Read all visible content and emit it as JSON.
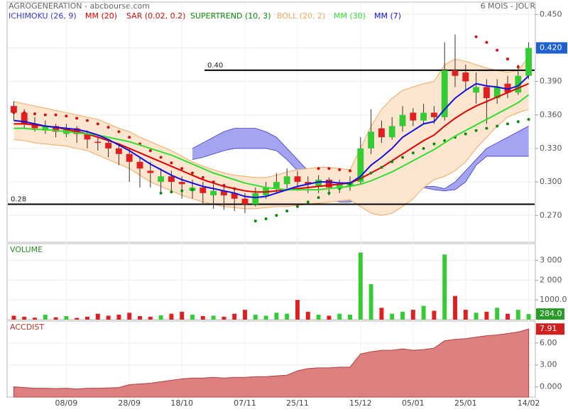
{
  "header": {
    "title": "AGROGENERATION - abcbourse.com",
    "period": "6 MOIS - JOUR"
  },
  "chart_data": [
    {
      "type": "candlestick",
      "categories": [
        null,
        null,
        null,
        null,
        null,
        "08/09",
        null,
        null,
        null,
        null,
        null,
        "28/09",
        null,
        null,
        null,
        null,
        "18/10",
        null,
        null,
        null,
        null,
        null,
        "07/11",
        null,
        null,
        null,
        null,
        "25/11",
        null,
        null,
        null,
        null,
        null,
        "15/12",
        null,
        null,
        null,
        null,
        "05/01",
        null,
        null,
        null,
        null,
        "25/01",
        null,
        null,
        null,
        null,
        null,
        "14/02"
      ],
      "ohlc": [
        [
          0.368,
          0.372,
          0.355,
          0.362
        ],
        [
          0.362,
          0.365,
          0.348,
          0.352
        ],
        [
          0.352,
          0.358,
          0.345,
          0.348
        ],
        [
          0.346,
          0.355,
          0.343,
          0.35
        ],
        [
          0.35,
          0.352,
          0.34,
          0.345
        ],
        [
          0.343,
          0.352,
          0.34,
          0.348
        ],
        [
          0.348,
          0.35,
          0.335,
          0.343
        ],
        [
          0.343,
          0.346,
          0.33,
          0.338
        ],
        [
          0.336,
          0.342,
          0.328,
          0.335
        ],
        [
          0.335,
          0.338,
          0.322,
          0.33
        ],
        [
          0.33,
          0.333,
          0.315,
          0.325
        ],
        [
          0.325,
          0.33,
          0.3,
          0.318
        ],
        [
          0.318,
          0.322,
          0.295,
          0.312
        ],
        [
          0.31,
          0.318,
          0.295,
          0.308
        ],
        [
          0.3,
          0.312,
          0.29,
          0.305
        ],
        [
          0.305,
          0.31,
          0.29,
          0.3
        ],
        [
          0.3,
          0.305,
          0.285,
          0.298
        ],
        [
          0.292,
          0.302,
          0.285,
          0.295
        ],
        [
          0.295,
          0.3,
          0.28,
          0.29
        ],
        [
          0.288,
          0.298,
          0.276,
          0.292
        ],
        [
          0.292,
          0.296,
          0.275,
          0.288
        ],
        [
          0.29,
          0.294,
          0.274,
          0.285
        ],
        [
          0.285,
          0.29,
          0.272,
          0.28
        ],
        [
          0.28,
          0.295,
          0.278,
          0.29
        ],
        [
          0.288,
          0.3,
          0.285,
          0.295
        ],
        [
          0.294,
          0.308,
          0.29,
          0.3
        ],
        [
          0.298,
          0.312,
          0.294,
          0.305
        ],
        [
          0.305,
          0.31,
          0.292,
          0.3
        ],
        [
          0.3,
          0.305,
          0.29,
          0.298
        ],
        [
          0.296,
          0.306,
          0.29,
          0.302
        ],
        [
          0.302,
          0.304,
          0.288,
          0.295
        ],
        [
          0.294,
          0.302,
          0.29,
          0.298
        ],
        [
          0.296,
          0.305,
          0.292,
          0.3
        ],
        [
          0.3,
          0.34,
          0.298,
          0.33
        ],
        [
          0.33,
          0.365,
          0.325,
          0.345
        ],
        [
          0.348,
          0.355,
          0.335,
          0.34
        ],
        [
          0.34,
          0.358,
          0.338,
          0.35
        ],
        [
          0.35,
          0.368,
          0.345,
          0.36
        ],
        [
          0.362,
          0.366,
          0.35,
          0.355
        ],
        [
          0.355,
          0.37,
          0.352,
          0.362
        ],
        [
          0.362,
          0.368,
          0.352,
          0.358
        ],
        [
          0.358,
          0.425,
          0.355,
          0.4
        ],
        [
          0.4,
          0.432,
          0.385,
          0.395
        ],
        [
          0.398,
          0.405,
          0.382,
          0.39
        ],
        [
          0.38,
          0.398,
          0.37,
          0.385
        ],
        [
          0.385,
          0.392,
          0.352,
          0.375
        ],
        [
          0.375,
          0.392,
          0.37,
          0.385
        ],
        [
          0.388,
          0.395,
          0.375,
          0.38
        ],
        [
          0.38,
          0.405,
          0.378,
          0.395
        ],
        [
          0.395,
          0.425,
          0.392,
          0.42
        ]
      ],
      "up_color": "#33cc33",
      "down_color": "#e02020",
      "ylim": [
        0.246,
        0.461
      ],
      "yticks": [
        {
          "value": 0.27,
          "label": "0.270"
        },
        {
          "value": 0.3,
          "label": "0.300"
        },
        {
          "value": 0.33,
          "label": "0.330"
        },
        {
          "value": 0.36,
          "label": "0.360"
        },
        {
          "value": 0.39,
          "label": "0.390"
        },
        {
          "value": 0.42,
          "label": "0.420"
        },
        {
          "value": 0.45,
          "label": "0.450"
        }
      ],
      "last_label": "0.420",
      "hlines": [
        {
          "value": 0.4,
          "label": "0.40"
        },
        {
          "value": 0.28,
          "label": "0.28"
        }
      ],
      "series": [
        {
          "name": "ICHIMOKU (26, 9)",
          "style": "cloud",
          "color": "#3a3ac8",
          "fill": "#a4a4f2",
          "span_a": [
            null,
            null,
            null,
            null,
            null,
            null,
            null,
            null,
            null,
            null,
            null,
            null,
            null,
            null,
            null,
            null,
            null,
            0.33,
            0.335,
            0.34,
            0.345,
            0.348,
            0.348,
            0.348,
            0.345,
            0.34,
            0.33,
            0.32,
            0.31,
            0.305,
            0.3,
            0.298,
            0.295,
            0.292,
            0.29,
            0.288,
            0.29,
            0.292,
            0.295,
            0.296,
            0.296,
            0.294,
            0.3,
            0.31,
            0.32,
            0.33,
            0.335,
            0.34,
            0.345,
            0.35
          ],
          "span_b": [
            null,
            null,
            null,
            null,
            null,
            null,
            null,
            null,
            null,
            null,
            null,
            null,
            null,
            null,
            null,
            null,
            null,
            0.32,
            0.322,
            0.325,
            0.328,
            0.33,
            0.33,
            0.33,
            0.33,
            0.328,
            0.32,
            0.31,
            0.3,
            0.29,
            0.285,
            0.282,
            0.282,
            0.285,
            0.288,
            0.292,
            0.295,
            0.296,
            0.296,
            0.295,
            0.293,
            0.292,
            0.293,
            0.3,
            0.315,
            0.323,
            0.323,
            0.323,
            0.323,
            0.323
          ]
        },
        {
          "name": "MM (20)",
          "style": "line",
          "color": "#e00000",
          "values": [
            0.352,
            0.352,
            0.351,
            0.35,
            0.349,
            0.347,
            0.345,
            0.343,
            0.34,
            0.337,
            0.334,
            0.33,
            0.326,
            0.322,
            0.318,
            0.314,
            0.31,
            0.306,
            0.302,
            0.299,
            0.296,
            0.294,
            0.292,
            0.291,
            0.291,
            0.292,
            0.293,
            0.294,
            0.295,
            0.296,
            0.297,
            0.298,
            0.299,
            0.303,
            0.308,
            0.313,
            0.319,
            0.325,
            0.331,
            0.337,
            0.342,
            0.35,
            0.357,
            0.363,
            0.368,
            0.372,
            0.376,
            0.38,
            0.384,
            0.388
          ]
        },
        {
          "name": "SAR (0.02, 0.2)",
          "style": "dots",
          "color": "#d01010",
          "values": [
            0.362,
            0.362,
            0.361,
            0.36,
            0.36,
            0.359,
            0.357,
            0.355,
            0.352,
            0.349,
            0.345,
            0.34,
            0.334,
            0.328,
            0.322,
            0.317,
            0.312,
            0.308,
            0.304,
            0.3,
            0.297,
            0.294,
            null,
            null,
            null,
            null,
            null,
            null,
            null,
            0.312,
            0.312,
            0.311,
            0.31,
            null,
            null,
            null,
            null,
            null,
            null,
            null,
            null,
            null,
            null,
            null,
            0.43,
            0.425,
            0.418,
            0.41,
            0.403,
            null
          ]
        },
        {
          "name": "SUPERTREND (10, 3)",
          "style": "dots",
          "color": "#0a8a0a",
          "values": [
            null,
            null,
            null,
            null,
            null,
            null,
            null,
            null,
            null,
            null,
            null,
            null,
            null,
            null,
            0.29,
            0.291,
            0.292,
            0.293,
            null,
            null,
            null,
            null,
            null,
            0.265,
            0.267,
            0.27,
            0.274,
            0.278,
            0.282,
            0.286,
            0.29,
            0.294,
            0.298,
            0.303,
            0.308,
            0.313,
            0.318,
            0.322,
            0.326,
            0.33,
            0.334,
            0.337,
            0.34,
            0.343,
            0.346,
            0.348,
            0.35,
            0.352,
            0.354,
            0.356
          ]
        },
        {
          "name": "BOLL (20, 2)",
          "style": "band",
          "color": "#f0a860",
          "fill": "#fde6cf",
          "upper": [
            0.372,
            0.37,
            0.368,
            0.366,
            0.364,
            0.362,
            0.36,
            0.358,
            0.356,
            0.352,
            0.348,
            0.345,
            0.34,
            0.336,
            0.332,
            0.328,
            0.323,
            0.318,
            0.314,
            0.311,
            0.308,
            0.306,
            0.305,
            0.304,
            0.304,
            0.306,
            0.309,
            0.311,
            0.312,
            0.313,
            0.313,
            0.312,
            0.311,
            0.33,
            0.35,
            0.365,
            0.375,
            0.382,
            0.385,
            0.388,
            0.39,
            0.405,
            0.41,
            0.408,
            0.405,
            0.402,
            0.4,
            0.398,
            0.4,
            0.412
          ],
          "lower": [
            0.338,
            0.337,
            0.335,
            0.334,
            0.333,
            0.332,
            0.33,
            0.328,
            0.324,
            0.32,
            0.316,
            0.312,
            0.306,
            0.3,
            0.296,
            0.292,
            0.288,
            0.285,
            0.282,
            0.28,
            0.278,
            0.277,
            0.276,
            0.276,
            0.277,
            0.278,
            0.278,
            0.279,
            0.28,
            0.281,
            0.282,
            0.283,
            0.284,
            0.278,
            0.272,
            0.27,
            0.272,
            0.278,
            0.285,
            0.295,
            0.302,
            0.305,
            0.31,
            0.318,
            0.33,
            0.34,
            0.35,
            0.358,
            0.362,
            0.365
          ]
        },
        {
          "name": "MM (30)",
          "style": "line",
          "color": "#33dd33",
          "values": [
            0.348,
            0.348,
            0.347,
            0.347,
            0.346,
            0.345,
            0.344,
            0.343,
            0.342,
            0.34,
            0.338,
            0.336,
            0.333,
            0.33,
            0.327,
            0.324,
            0.32,
            0.316,
            0.312,
            0.308,
            0.305,
            0.302,
            0.299,
            0.297,
            0.295,
            0.294,
            0.293,
            0.293,
            0.293,
            0.293,
            0.294,
            0.295,
            0.296,
            0.298,
            0.301,
            0.305,
            0.309,
            0.314,
            0.319,
            0.324,
            0.329,
            0.335,
            0.341,
            0.346,
            0.351,
            0.356,
            0.361,
            0.366,
            0.371,
            0.378
          ]
        },
        {
          "name": "MM (7)",
          "style": "line",
          "color": "#1010e0",
          "values": [
            0.355,
            0.354,
            0.352,
            0.35,
            0.349,
            0.348,
            0.347,
            0.345,
            0.342,
            0.338,
            0.333,
            0.328,
            0.322,
            0.316,
            0.311,
            0.306,
            0.302,
            0.299,
            0.296,
            0.294,
            0.292,
            0.29,
            0.287,
            0.286,
            0.287,
            0.29,
            0.293,
            0.296,
            0.298,
            0.3,
            0.3,
            0.299,
            0.299,
            0.305,
            0.315,
            0.322,
            0.33,
            0.34,
            0.346,
            0.352,
            0.354,
            0.365,
            0.375,
            0.382,
            0.388,
            0.386,
            0.385,
            0.383,
            0.386,
            0.395
          ]
        }
      ]
    },
    {
      "type": "bar",
      "title": "VOLUME",
      "title_color": "#2a8a2a",
      "values": [
        200,
        150,
        100,
        250,
        120,
        180,
        90,
        150,
        300,
        200,
        250,
        350,
        180,
        150,
        220,
        300,
        400,
        250,
        180,
        200,
        150,
        300,
        500,
        250,
        200,
        350,
        300,
        1000,
        400,
        250,
        200,
        300,
        250,
        3400,
        1800,
        600,
        300,
        400,
        500,
        700,
        450,
        3300,
        1200,
        500,
        350,
        400,
        600,
        300,
        500,
        284
      ],
      "ylim": [
        0,
        3850
      ],
      "yticks": [
        {
          "value": 1000,
          "label": "1000.0"
        },
        {
          "value": 2000,
          "label": "2 000"
        },
        {
          "value": 3000,
          "label": "3 000"
        }
      ],
      "last_label": "284.0",
      "badge_color": "#2a9a2a"
    },
    {
      "type": "area",
      "title": "ACCDIST",
      "title_color": "#c03030",
      "color": "#d86a6a",
      "values": [
        0,
        -0.1,
        -0.2,
        -0.2,
        -0.25,
        -0.2,
        -0.3,
        -0.2,
        -0.2,
        -0.15,
        -0.1,
        0.3,
        0.4,
        0.5,
        0.7,
        0.9,
        1.1,
        1.2,
        1.2,
        1.3,
        1.2,
        1.3,
        1.3,
        1.4,
        1.4,
        1.5,
        1.6,
        2.2,
        2.5,
        2.6,
        2.6,
        2.7,
        2.7,
        4.5,
        4.8,
        5.0,
        5.0,
        5.2,
        5.0,
        5.1,
        5.3,
        6.3,
        6.5,
        6.6,
        6.8,
        7.0,
        7.1,
        7.3,
        7.5,
        7.91
      ],
      "ylim": [
        -1.4,
        9.0
      ],
      "yticks": [
        {
          "value": 0,
          "label": "0.000"
        },
        {
          "value": 3,
          "label": "3.00"
        },
        {
          "value": 6,
          "label": "6.00"
        }
      ],
      "badge_color": "#d02020"
    }
  ]
}
